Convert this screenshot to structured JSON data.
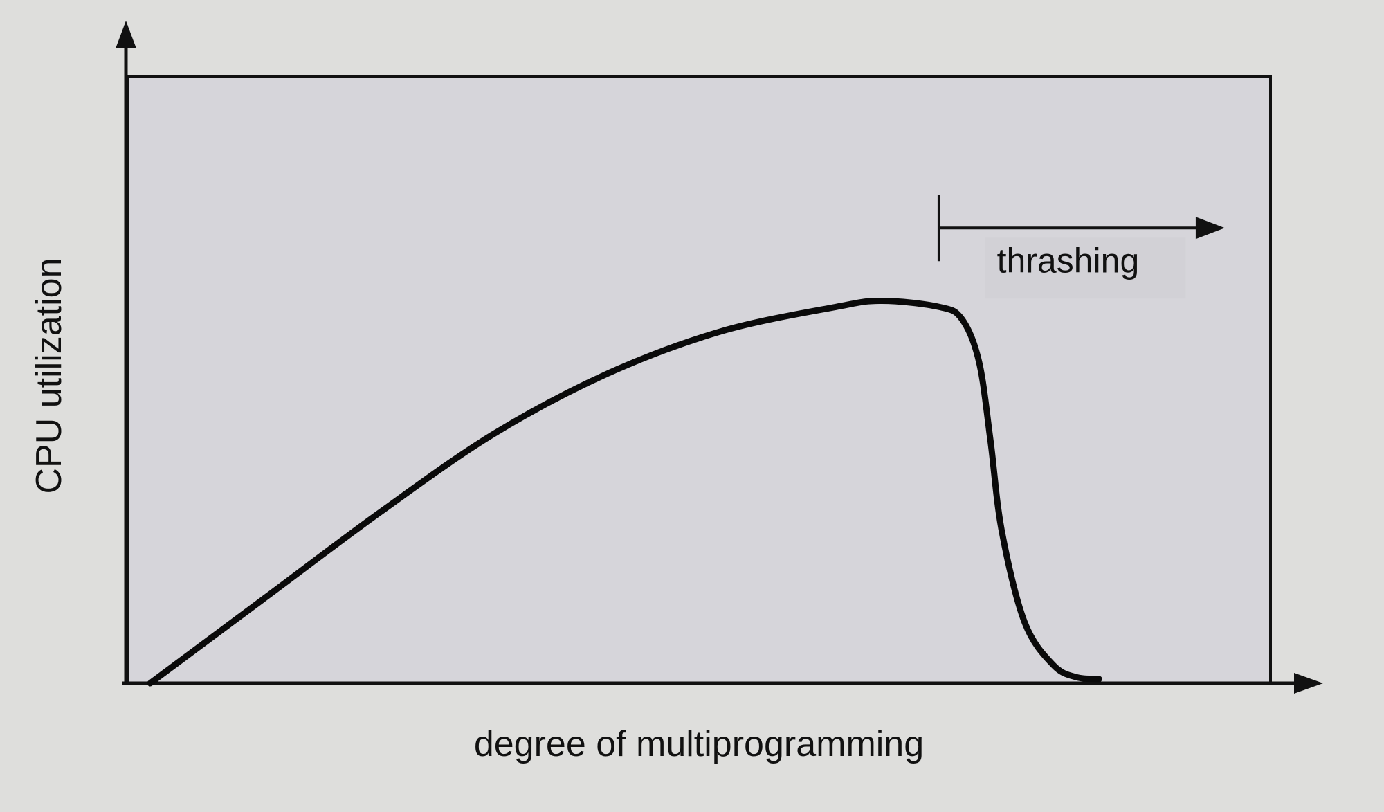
{
  "chart_data": {
    "type": "line",
    "title": "",
    "xlabel": "degree of multiprogramming",
    "ylabel": "CPU utilization",
    "xlim": [
      0,
      100
    ],
    "ylim": [
      0,
      100
    ],
    "grid": false,
    "series": [
      {
        "values": [
          {
            "x": 2,
            "y": 0
          },
          {
            "x": 12,
            "y": 14
          },
          {
            "x": 22,
            "y": 28
          },
          {
            "x": 32,
            "y": 41
          },
          {
            "x": 42,
            "y": 51
          },
          {
            "x": 52,
            "y": 58
          },
          {
            "x": 62,
            "y": 62
          },
          {
            "x": 66,
            "y": 63
          },
          {
            "x": 71,
            "y": 62
          },
          {
            "x": 73,
            "y": 60
          },
          {
            "x": 74.5,
            "y": 53
          },
          {
            "x": 75.5,
            "y": 40
          },
          {
            "x": 76.5,
            "y": 25
          },
          {
            "x": 78.5,
            "y": 10
          },
          {
            "x": 81,
            "y": 3
          },
          {
            "x": 83,
            "y": 1
          },
          {
            "x": 85,
            "y": 0.7
          }
        ]
      }
    ],
    "annotations": [
      {
        "text": "thrashing",
        "x_start": 71,
        "x_end": 96,
        "y": 75
      }
    ]
  },
  "colors": {
    "background": "#dededc",
    "plot_area": "#d6d5da",
    "ink": "#111111"
  }
}
